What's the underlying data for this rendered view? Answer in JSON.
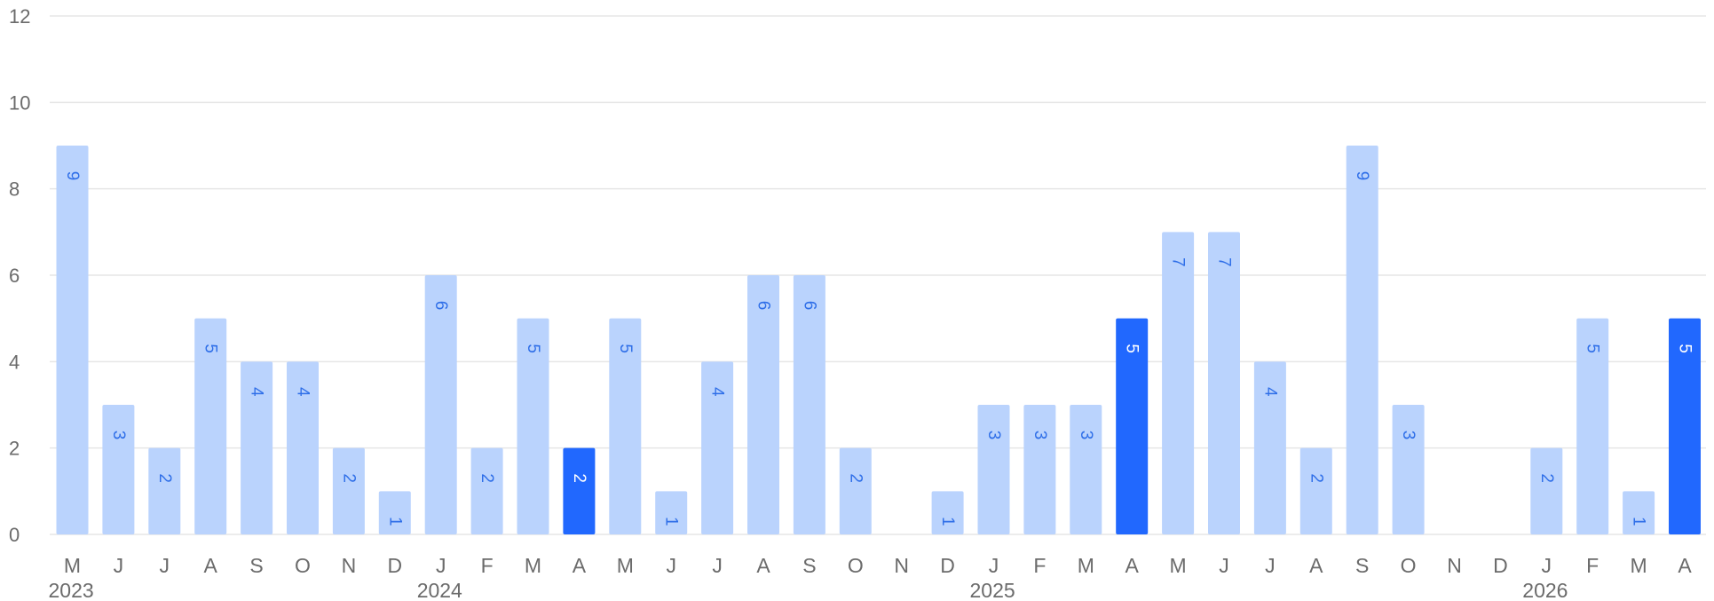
{
  "chart_data": {
    "type": "bar",
    "title": "",
    "xlabel": "",
    "ylabel": "",
    "ylim": [
      0,
      12
    ],
    "yticks": [
      0,
      2,
      4,
      6,
      8,
      10,
      12
    ],
    "grid": true,
    "colors": {
      "normal": "#bad3fd",
      "highlight": "#2168fe",
      "normal_label": "#2e6ee8",
      "highlight_label": "#ffffff",
      "grid": "#e6e6e6",
      "axis_text": "#6b6b6b"
    },
    "categories": [
      "M",
      "J",
      "J",
      "A",
      "S",
      "O",
      "N",
      "D",
      "J",
      "F",
      "M",
      "A",
      "M",
      "J",
      "J",
      "A",
      "S",
      "O",
      "N",
      "D",
      "J",
      "F",
      "M",
      "A",
      "M",
      "J",
      "J",
      "A",
      "S",
      "O",
      "N",
      "D",
      "J",
      "F",
      "M",
      "A"
    ],
    "values": [
      9,
      3,
      2,
      5,
      4,
      4,
      2,
      1,
      6,
      2,
      5,
      2,
      5,
      1,
      4,
      6,
      6,
      2,
      0,
      1,
      3,
      3,
      3,
      5,
      7,
      7,
      4,
      2,
      9,
      3,
      0,
      0,
      2,
      5,
      1,
      5
    ],
    "highlighted": [
      11,
      23,
      35
    ],
    "years": [
      {
        "label": "2023",
        "index": 0
      },
      {
        "label": "2024",
        "index": 8
      },
      {
        "label": "2025",
        "index": 20
      },
      {
        "label": "2026",
        "index": 32
      }
    ]
  }
}
